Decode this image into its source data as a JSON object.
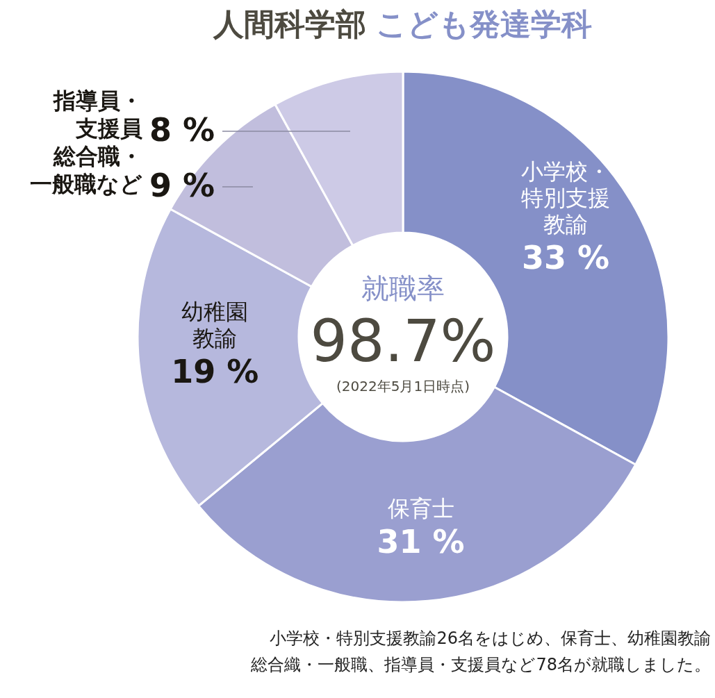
{
  "chart_data": {
    "type": "donut",
    "title": "人間科学部",
    "subtitle": "こども発達学科",
    "categories": [
      "小学校・特別支援教諭",
      "保育士",
      "幼稚園教諭",
      "総合職・一般職など",
      "指導員・支援員"
    ],
    "values": [
      33,
      31,
      19,
      9,
      8
    ],
    "value_labels": [
      "33 %",
      "31 %",
      "19 %",
      "9 %",
      "8 %"
    ],
    "colors": [
      "#8590c8",
      "#9a9fd0",
      "#b6b8dd",
      "#c1bedd",
      "#cdcae6"
    ],
    "annotations": [
      "就職率",
      "98.7%",
      "(2022年5月1日時点)",
      "小学校・特別支援教諭26名をはじめ、保育士、幼稚園教諭",
      "総合織・一般職、指導員・支援員など78名が就職しました。"
    ]
  }
}
